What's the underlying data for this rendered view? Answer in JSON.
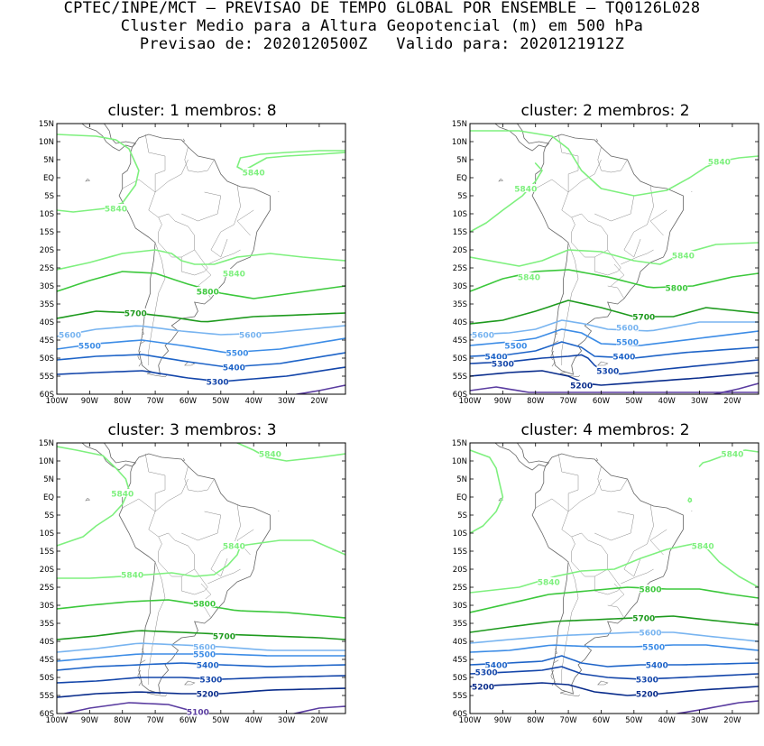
{
  "header": {
    "line1": "CPTEC/INPE/MCT — PREVISAO DE TEMPO GLOBAL POR ENSEMBLE — TQ0126L028",
    "line2": "Cluster Medio para a Altura Geopotencial (m) em 500 hPa",
    "line3": "Previsao de: 2020120500Z   Valido para: 2020121912Z"
  },
  "axes": {
    "lat_labels": [
      "15N",
      "10N",
      "5N",
      "EQ",
      "5S",
      "10S",
      "15S",
      "20S",
      "25S",
      "30S",
      "35S",
      "40S",
      "45S",
      "50S",
      "55S",
      "60S"
    ],
    "lon_labels": [
      "100W",
      "90W",
      "80W",
      "70W",
      "60W",
      "50W",
      "40W",
      "30W",
      "20W"
    ]
  },
  "contour_colors": {
    "5840": "#7ef07e",
    "5800": "#3cc83c",
    "5700": "#1e9a1e",
    "5600": "#78b4f0",
    "5500": "#3c8ce6",
    "5400": "#1e64c8",
    "5300": "#1446aa",
    "5200": "#0a2d8c",
    "5100": "#5a3ca0"
  },
  "panels": [
    {
      "title": "cluster: 1   membros: 8",
      "labels": [
        {
          "text": "5840",
          "lon": -82,
          "lat": -8.5,
          "level": "5840"
        },
        {
          "text": "5840",
          "lon": -40,
          "lat": 1.5,
          "level": "5840"
        },
        {
          "text": "5840",
          "lon": -46,
          "lat": -26.5,
          "level": "5840"
        },
        {
          "text": "5800",
          "lon": -54,
          "lat": -31.5,
          "level": "5800"
        },
        {
          "text": "5700",
          "lon": -76,
          "lat": -37.5,
          "level": "5700"
        },
        {
          "text": "5600",
          "lon": -96,
          "lat": -43.5,
          "level": "5600"
        },
        {
          "text": "5600",
          "lon": -41,
          "lat": -43.5,
          "level": "5600"
        },
        {
          "text": "5500",
          "lon": -90,
          "lat": -46.5,
          "level": "5500"
        },
        {
          "text": "5500",
          "lon": -45,
          "lat": -48.5,
          "level": "5500"
        },
        {
          "text": "5400",
          "lon": -46,
          "lat": -52.5,
          "level": "5400"
        },
        {
          "text": "5300",
          "lon": -51,
          "lat": -56.5,
          "level": "5300"
        }
      ]
    },
    {
      "title": "cluster: 2   membros: 2",
      "labels": [
        {
          "text": "5840",
          "lon": -24,
          "lat": 4.5,
          "level": "5840"
        },
        {
          "text": "5840",
          "lon": -83,
          "lat": -3,
          "level": "5840"
        },
        {
          "text": "5840",
          "lon": -35,
          "lat": -21.5,
          "level": "5840"
        },
        {
          "text": "5840",
          "lon": -82,
          "lat": -27.5,
          "level": "5840"
        },
        {
          "text": "5800",
          "lon": -37,
          "lat": -30.5,
          "level": "5800"
        },
        {
          "text": "5700",
          "lon": -47,
          "lat": -38.5,
          "level": "5700"
        },
        {
          "text": "5600",
          "lon": -96,
          "lat": -43.5,
          "level": "5600"
        },
        {
          "text": "5600",
          "lon": -52,
          "lat": -41.5,
          "level": "5600"
        },
        {
          "text": "5500",
          "lon": -86,
          "lat": -46.5,
          "level": "5500"
        },
        {
          "text": "5500",
          "lon": -52,
          "lat": -45.5,
          "level": "5500"
        },
        {
          "text": "5400",
          "lon": -92,
          "lat": -49.5,
          "level": "5400"
        },
        {
          "text": "5400",
          "lon": -53,
          "lat": -49.5,
          "level": "5400"
        },
        {
          "text": "5300",
          "lon": -90,
          "lat": -51.5,
          "level": "5300"
        },
        {
          "text": "5300",
          "lon": -58,
          "lat": -53.5,
          "level": "5300"
        },
        {
          "text": "5200",
          "lon": -66,
          "lat": -57.5,
          "level": "5200"
        }
      ]
    },
    {
      "title": "cluster: 3   membros: 3",
      "labels": [
        {
          "text": "5840",
          "lon": -35,
          "lat": 12,
          "level": "5840"
        },
        {
          "text": "5840",
          "lon": -80,
          "lat": 1,
          "level": "5840"
        },
        {
          "text": "5840",
          "lon": -46,
          "lat": -13.5,
          "level": "5840"
        },
        {
          "text": "5840",
          "lon": -77,
          "lat": -21.5,
          "level": "5840"
        },
        {
          "text": "5800",
          "lon": -55,
          "lat": -29.5,
          "level": "5800"
        },
        {
          "text": "5700",
          "lon": -49,
          "lat": -38.5,
          "level": "5700"
        },
        {
          "text": "5600",
          "lon": -55,
          "lat": -41.5,
          "level": "5600"
        },
        {
          "text": "5500",
          "lon": -55,
          "lat": -43.5,
          "level": "5500"
        },
        {
          "text": "5400",
          "lon": -54,
          "lat": -46.5,
          "level": "5400"
        },
        {
          "text": "5300",
          "lon": -53,
          "lat": -50.5,
          "level": "5300"
        },
        {
          "text": "5200",
          "lon": -54,
          "lat": -54.5,
          "level": "5200"
        },
        {
          "text": "5100",
          "lon": -57,
          "lat": -59.5,
          "level": "5100"
        }
      ]
    },
    {
      "title": "cluster: 4   membros: 2",
      "labels": [
        {
          "text": "5840",
          "lon": -20,
          "lat": 12,
          "level": "5840"
        },
        {
          "text": "5840",
          "lon": -29,
          "lat": -13.5,
          "level": "5840"
        },
        {
          "text": "5840",
          "lon": -76,
          "lat": -23.5,
          "level": "5840"
        },
        {
          "text": "5800",
          "lon": -45,
          "lat": -25.5,
          "level": "5800"
        },
        {
          "text": "5700",
          "lon": -47,
          "lat": -33.5,
          "level": "5700"
        },
        {
          "text": "5600",
          "lon": -45,
          "lat": -37.5,
          "level": "5600"
        },
        {
          "text": "5500",
          "lon": -44,
          "lat": -41.5,
          "level": "5500"
        },
        {
          "text": "5400",
          "lon": -92,
          "lat": -46.5,
          "level": "5400"
        },
        {
          "text": "5400",
          "lon": -43,
          "lat": -46.5,
          "level": "5400"
        },
        {
          "text": "5300",
          "lon": -95,
          "lat": -48.5,
          "level": "5300"
        },
        {
          "text": "5300",
          "lon": -46,
          "lat": -50.5,
          "level": "5300"
        },
        {
          "text": "5200",
          "lon": -96,
          "lat": -52.5,
          "level": "5200"
        },
        {
          "text": "5200",
          "lon": -46,
          "lat": -54.5,
          "level": "5200"
        }
      ]
    }
  ]
}
